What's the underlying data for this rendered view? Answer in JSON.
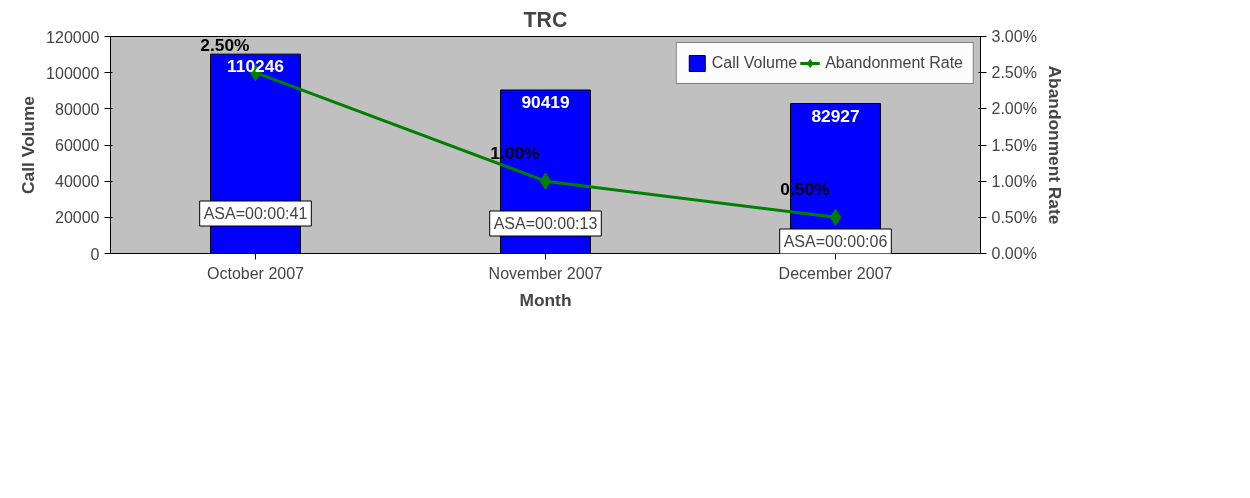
{
  "chart_data": {
    "type": "bar",
    "title": "TRC",
    "xlabel": "Month",
    "ylabel": "Call Volume",
    "y2label": "Abandonment Rate",
    "categories": [
      "October 2007",
      "November 2007",
      "December 2007"
    ],
    "series": [
      {
        "name": "Call Volume",
        "color": "#0000ff",
        "values": [
          110246,
          90419,
          82927
        ],
        "value_labels": [
          "110246",
          "90419",
          "82927"
        ]
      },
      {
        "name": "Abandonment Rate",
        "type": "line",
        "axis": "y2",
        "color": "#008000",
        "marker": "diamond",
        "values": [
          2.5,
          1.0,
          0.5
        ],
        "value_labels": [
          "2.50%",
          "1.00%",
          "0.50%"
        ]
      }
    ],
    "ylim": [
      0,
      120000
    ],
    "yticks": [
      0,
      20000,
      40000,
      60000,
      80000,
      100000,
      120000
    ],
    "y2lim": [
      0,
      3
    ],
    "y2ticks": [
      {
        "value": 0,
        "label": "0.00%"
      },
      {
        "value": 0.5,
        "label": "0.50%"
      },
      {
        "value": 1,
        "label": "1.00%"
      },
      {
        "value": 1.5,
        "label": "1.50%"
      },
      {
        "value": 2,
        "label": "2.00%"
      },
      {
        "value": 2.5,
        "label": "2.50%"
      },
      {
        "value": 3,
        "label": "3.00%"
      }
    ],
    "annotations": [
      "ASA=00:00:41",
      "ASA=00:00:13",
      "ASA=00:00:06"
    ],
    "grid": false,
    "legend": "top right"
  }
}
